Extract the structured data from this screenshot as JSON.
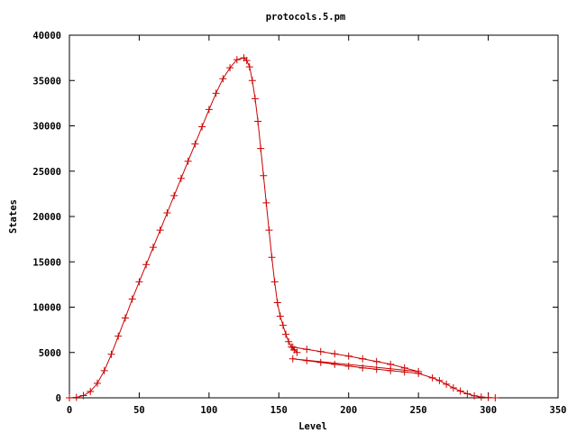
{
  "chart_data": {
    "type": "line",
    "title": "protocols.5.pm",
    "xlabel": "Level",
    "ylabel": "States",
    "xlim": [
      0,
      350
    ],
    "ylim": [
      0,
      40000
    ],
    "xticks": [
      "0",
      "50",
      "100",
      "150",
      "200",
      "250",
      "300",
      "350"
    ],
    "yticks": [
      "0",
      "5000",
      "10000",
      "15000",
      "20000",
      "25000",
      "30000",
      "35000",
      "40000"
    ],
    "grid": false,
    "legend": "none",
    "color": "#cc0000",
    "marker": "+",
    "series": [
      {
        "x": [
          0,
          5,
          10,
          15,
          20,
          25,
          30,
          35,
          40,
          45,
          50,
          55,
          60,
          65,
          70,
          75,
          80,
          85,
          90,
          95,
          100,
          105,
          110,
          115,
          120,
          125,
          127,
          129,
          131,
          133,
          135,
          137,
          139,
          141,
          143,
          145,
          147,
          149,
          151,
          153,
          155,
          157,
          159,
          161,
          163,
          160,
          170,
          180,
          190,
          200,
          210,
          220,
          230,
          240,
          250,
          160,
          170,
          180,
          190,
          200,
          210,
          220,
          230,
          240,
          250,
          260,
          265,
          270,
          275,
          280,
          285,
          290,
          295,
          300,
          305
        ],
        "y": [
          0,
          50,
          250,
          700,
          1600,
          3000,
          4800,
          6800,
          8800,
          10900,
          12800,
          14700,
          16600,
          18500,
          20400,
          22300,
          24200,
          26100,
          28000,
          29900,
          31800,
          33600,
          35200,
          36400,
          37300,
          37500,
          37200,
          36500,
          35000,
          33000,
          30500,
          27500,
          24500,
          21500,
          18500,
          15500,
          12800,
          10500,
          9000,
          8000,
          7000,
          6200,
          5600,
          5300,
          5000,
          5600,
          5350,
          5100,
          4850,
          4600,
          4300,
          4000,
          3700,
          3300,
          2900,
          4300,
          4100,
          3900,
          3700,
          3500,
          3300,
          3150,
          3000,
          2850,
          2700,
          2200,
          1900,
          1500,
          1100,
          750,
          450,
          220,
          90,
          30,
          0
        ]
      }
    ]
  }
}
